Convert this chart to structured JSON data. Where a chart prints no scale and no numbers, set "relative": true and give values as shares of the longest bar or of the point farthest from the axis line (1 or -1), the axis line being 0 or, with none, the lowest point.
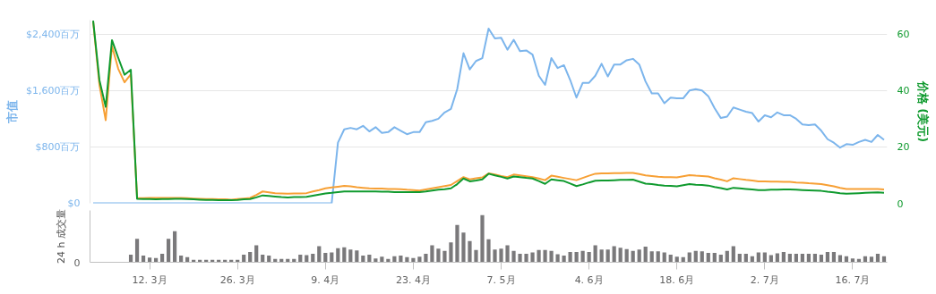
{
  "chart_data": [
    {
      "type": "line",
      "ylabel": "市值",
      "y2label": "价格 (美元)",
      "ylim": [
        0,
        2600
      ],
      "y2lim": [
        0,
        65
      ],
      "tick_labels": "y",
      "grid": "y",
      "categories": [
        null,
        null,
        null,
        null,
        null,
        null,
        null,
        null,
        null,
        null,
        null,
        null,
        null,
        null,
        null,
        null,
        null,
        null,
        null,
        null,
        null,
        null,
        null,
        null,
        null,
        null,
        null,
        null,
        null,
        null,
        null,
        null,
        null,
        null,
        null,
        null,
        null,
        null,
        null,
        null,
        null,
        null,
        null,
        null,
        null,
        null,
        null,
        null,
        null,
        null,
        null,
        null,
        null,
        null,
        null,
        null,
        null,
        null,
        null,
        null,
        null,
        null,
        null,
        null,
        null,
        null,
        null,
        null,
        null,
        null,
        null,
        null,
        null,
        null,
        null,
        null,
        null,
        null,
        null,
        null,
        null,
        null,
        null,
        null,
        null,
        null,
        null,
        null,
        null,
        null,
        null,
        null,
        null,
        null,
        null,
        null,
        null,
        null,
        null,
        null,
        null,
        null,
        null,
        null,
        null,
        null,
        null,
        null,
        null,
        null,
        null,
        null,
        null,
        null,
        null,
        null,
        null,
        null,
        null,
        null,
        null,
        null,
        null,
        null,
        null,
        null,
        null
      ],
      "yticks": [
        {
          "value": 0,
          "label": "$0"
        },
        {
          "value": 800,
          "label": "$800百万"
        },
        {
          "value": 1600,
          "label": "$1,600百万"
        },
        {
          "value": 2400,
          "label": "$2,400百万"
        }
      ],
      "y2ticks": [
        0,
        20,
        40,
        60
      ],
      "series": [
        {
          "color": "#7cb5ec",
          "values": [
            0,
            0,
            0,
            0,
            0,
            0,
            0,
            0,
            0,
            0,
            0,
            0,
            0,
            0,
            0,
            0,
            0,
            0,
            0,
            0,
            0,
            0,
            0,
            0,
            0,
            0,
            0,
            0,
            0,
            0,
            0,
            0,
            0,
            0,
            0,
            0,
            0,
            0,
            0,
            860,
            1050,
            1070,
            1050,
            1100,
            1020,
            1080,
            1000,
            1010,
            1080,
            1030,
            980,
            1010,
            1010,
            1150,
            1170,
            1200,
            1290,
            1340,
            1620,
            2130,
            1900,
            2020,
            2060,
            2480,
            2340,
            2350,
            2180,
            2320,
            2160,
            2170,
            2110,
            1810,
            1680,
            2060,
            1920,
            1960,
            1750,
            1500,
            1710,
            1710,
            1810,
            1980,
            1800,
            1970,
            1970,
            2030,
            2050,
            1970,
            1730,
            1560,
            1560,
            1420,
            1500,
            1490,
            1490,
            1600,
            1620,
            1600,
            1520,
            1350,
            1210,
            1230,
            1360,
            1330,
            1300,
            1280,
            1160,
            1250,
            1220,
            1290,
            1250,
            1250,
            1200,
            1120,
            1110,
            1120,
            1030,
            910,
            860,
            790,
            840,
            830,
            870,
            900,
            870,
            970,
            900
          ]
        },
        {
          "color": "#f7a035",
          "axis": "y2",
          "values": [
            64.5,
            42,
            29.5,
            55.8,
            47.7,
            42.9,
            45.8,
            1.8,
            1.8,
            1.9,
            1.9,
            1.9,
            1.9,
            1.9,
            1.9,
            1.8,
            1.7,
            1.6,
            1.5,
            1.5,
            1.4,
            1.4,
            1.3,
            1.5,
            1.7,
            1.9,
            3.0,
            4.2,
            3.9,
            3.6,
            3.5,
            3.4,
            3.5,
            3.5,
            3.6,
            4.2,
            4.7,
            5.3,
            5.6,
            5.9,
            6.2,
            6.0,
            5.7,
            5.5,
            5.3,
            5.2,
            5.2,
            5.1,
            5.1,
            5.0,
            4.8,
            4.7,
            4.5,
            4.9,
            5.3,
            5.7,
            6.1,
            6.5,
            7.9,
            9.3,
            8.5,
            8.9,
            9.2,
            10.6,
            10.2,
            9.7,
            9.3,
            10.2,
            9.9,
            9.6,
            9.3,
            8.8,
            8.2,
            9.8,
            9.4,
            9.0,
            8.6,
            8.2,
            9.0,
            9.8,
            10.5,
            10.6,
            10.6,
            10.7,
            10.7,
            10.8,
            10.8,
            10.4,
            9.9,
            9.7,
            9.4,
            9.3,
            9.3,
            9.2,
            9.6,
            10.0,
            9.8,
            9.7,
            9.5,
            8.9,
            8.4,
            7.8,
            8.9,
            8.6,
            8.3,
            8.1,
            7.8,
            7.8,
            7.7,
            7.7,
            7.6,
            7.6,
            7.4,
            7.3,
            7.1,
            7.0,
            6.8,
            6.4,
            6.0,
            5.5,
            5.1,
            5.1,
            5.1,
            5.1,
            5.1,
            5.1,
            4.9
          ]
        },
        {
          "color": "#0f9a2e",
          "axis": "y2",
          "values": [
            64.8,
            43.7,
            34.2,
            57.9,
            51.6,
            45.6,
            47.4,
            1.6,
            1.5,
            1.5,
            1.4,
            1.5,
            1.5,
            1.6,
            1.6,
            1.5,
            1.4,
            1.3,
            1.2,
            1.2,
            1.1,
            1.1,
            1.1,
            1.2,
            1.4,
            1.5,
            2.1,
            2.8,
            2.6,
            2.4,
            2.2,
            2.1,
            2.2,
            2.2,
            2.3,
            2.7,
            3.1,
            3.5,
            3.7,
            4.0,
            4.2,
            4.2,
            4.2,
            4.2,
            4.2,
            4.2,
            4.1,
            4.1,
            4.0,
            4.0,
            4.0,
            4.0,
            4.0,
            4.2,
            4.5,
            4.8,
            5.0,
            5.3,
            6.8,
            8.8,
            7.8,
            8.1,
            8.5,
            10.5,
            9.9,
            9.4,
            8.8,
            9.5,
            9.3,
            9.0,
            8.8,
            7.9,
            6.9,
            8.5,
            8.2,
            7.9,
            7.0,
            6.1,
            6.7,
            7.4,
            8.0,
            8.1,
            8.1,
            8.2,
            8.3,
            8.3,
            8.4,
            7.7,
            7.0,
            6.8,
            6.5,
            6.3,
            6.2,
            6.0,
            6.4,
            6.8,
            6.6,
            6.5,
            6.3,
            5.8,
            5.4,
            4.9,
            5.5,
            5.3,
            5.1,
            4.9,
            4.7,
            4.7,
            4.8,
            4.8,
            4.9,
            4.9,
            4.8,
            4.7,
            4.6,
            4.5,
            4.4,
            4.1,
            3.9,
            3.6,
            3.4,
            3.5,
            3.6,
            3.7,
            3.8,
            3.9,
            3.7
          ]
        }
      ]
    },
    {
      "type": "bar",
      "relative": true,
      "ylabel": "24 h 成交量",
      "annotations": [
        "0"
      ],
      "color": "#7a797b",
      "categories": [
        null,
        null,
        null,
        null,
        null,
        null,
        null,
        null,
        null,
        "12. 3月",
        null,
        null,
        null,
        null,
        null,
        null,
        null,
        null,
        null,
        null,
        null,
        null,
        null,
        "26. 3月",
        null,
        null,
        null,
        null,
        null,
        null,
        null,
        null,
        null,
        null,
        null,
        null,
        null,
        "9. 4月",
        null,
        null,
        null,
        null,
        null,
        null,
        null,
        null,
        null,
        null,
        null,
        null,
        null,
        "23. 4月",
        null,
        null,
        null,
        null,
        null,
        null,
        null,
        null,
        null,
        null,
        null,
        null,
        null,
        "7. 5月",
        null,
        null,
        null,
        null,
        null,
        null,
        null,
        null,
        null,
        null,
        null,
        null,
        null,
        "4. 6月",
        null,
        null,
        null,
        null,
        null,
        null,
        null,
        null,
        null,
        null,
        null,
        null,
        null,
        "18. 6月",
        null,
        null,
        null,
        null,
        null,
        null,
        null,
        null,
        null,
        null,
        null,
        null,
        null,
        "2. 7月",
        null,
        null,
        null,
        null,
        null,
        null,
        null,
        null,
        null,
        null,
        null,
        null,
        null,
        "16. 7月",
        null,
        null,
        null,
        null,
        null
      ],
      "values": [
        null,
        null,
        null,
        null,
        null,
        null,
        0.16,
        0.5,
        0.14,
        0.1,
        0.09,
        0.18,
        0.5,
        0.66,
        0.14,
        0.11,
        0.05,
        0.05,
        0.05,
        0.05,
        0.05,
        0.05,
        0.05,
        0.05,
        0.16,
        0.22,
        0.36,
        0.16,
        0.14,
        0.07,
        0.07,
        0.07,
        0.07,
        0.16,
        0.15,
        0.18,
        0.34,
        0.2,
        0.21,
        0.3,
        0.32,
        0.27,
        0.25,
        0.14,
        0.16,
        0.08,
        0.12,
        0.07,
        0.13,
        0.14,
        0.11,
        0.09,
        0.12,
        0.18,
        0.36,
        0.29,
        0.24,
        0.42,
        0.79,
        0.63,
        0.45,
        0.26,
        1,
        0.49,
        0.27,
        0.29,
        0.36,
        0.24,
        0.18,
        0.18,
        0.21,
        0.26,
        0.26,
        0.24,
        0.17,
        0.14,
        0.22,
        0.22,
        0.24,
        0.22,
        0.36,
        0.27,
        0.27,
        0.34,
        0.31,
        0.28,
        0.24,
        0.27,
        0.33,
        0.23,
        0.23,
        0.21,
        0.16,
        0.12,
        0.11,
        0.21,
        0.24,
        0.23,
        0.2,
        0.2,
        0.16,
        0.24,
        0.34,
        0.18,
        0.18,
        0.13,
        0.21,
        0.21,
        0.15,
        0.19,
        0.22,
        0.18,
        0.18,
        0.18,
        0.18,
        0.18,
        0.16,
        0.22,
        0.22,
        0.15,
        0.13,
        0.08,
        0.07,
        0.13,
        0.12,
        0.18,
        0.13
      ]
    }
  ]
}
